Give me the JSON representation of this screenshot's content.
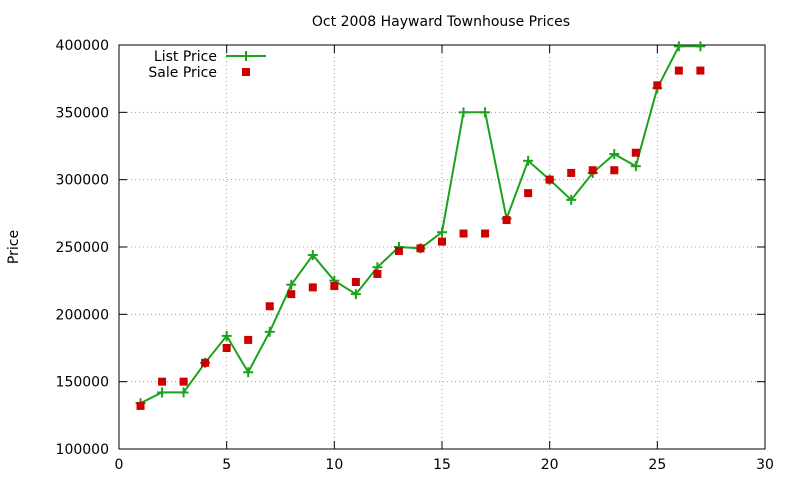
{
  "chart_data": {
    "type": "line",
    "title": "Oct 2008 Hayward Townhouse Prices",
    "xlabel": "",
    "ylabel": "Price",
    "xlim": [
      0,
      30
    ],
    "ylim": [
      100000,
      400000
    ],
    "xticks": [
      0,
      5,
      10,
      15,
      20,
      25,
      30
    ],
    "yticks": [
      100000,
      150000,
      200000,
      250000,
      300000,
      350000,
      400000
    ],
    "grid": true,
    "legend_position": "top-left",
    "series": [
      {
        "name": "List Price",
        "style": "linespoints",
        "marker": "plus",
        "color": "#1aa31a",
        "x": [
          1,
          2,
          3,
          4,
          5,
          6,
          7,
          8,
          9,
          10,
          11,
          12,
          13,
          14,
          15,
          16,
          17,
          18,
          19,
          20,
          21,
          22,
          23,
          24,
          25,
          26,
          27
        ],
        "y": [
          134000,
          142000,
          142000,
          164000,
          184000,
          157000,
          187000,
          222000,
          244000,
          225000,
          215000,
          235000,
          250000,
          249000,
          261000,
          350000,
          350000,
          271000,
          314000,
          300000,
          285000,
          305000,
          319000,
          310000,
          368000,
          399000,
          399000
        ]
      },
      {
        "name": "Sale Price",
        "style": "points",
        "marker": "square",
        "color": "#cc0000",
        "x": [
          1,
          2,
          3,
          4,
          5,
          6,
          7,
          8,
          9,
          10,
          11,
          12,
          13,
          14,
          15,
          16,
          17,
          18,
          19,
          20,
          21,
          22,
          23,
          24,
          25,
          26,
          27
        ],
        "y": [
          132000,
          150000,
          150000,
          164000,
          175000,
          181000,
          206000,
          215000,
          220000,
          221000,
          224000,
          230000,
          247000,
          249000,
          254000,
          260000,
          260000,
          270000,
          290000,
          300000,
          305000,
          307000,
          307000,
          320000,
          370000,
          381000,
          381000
        ]
      }
    ]
  }
}
